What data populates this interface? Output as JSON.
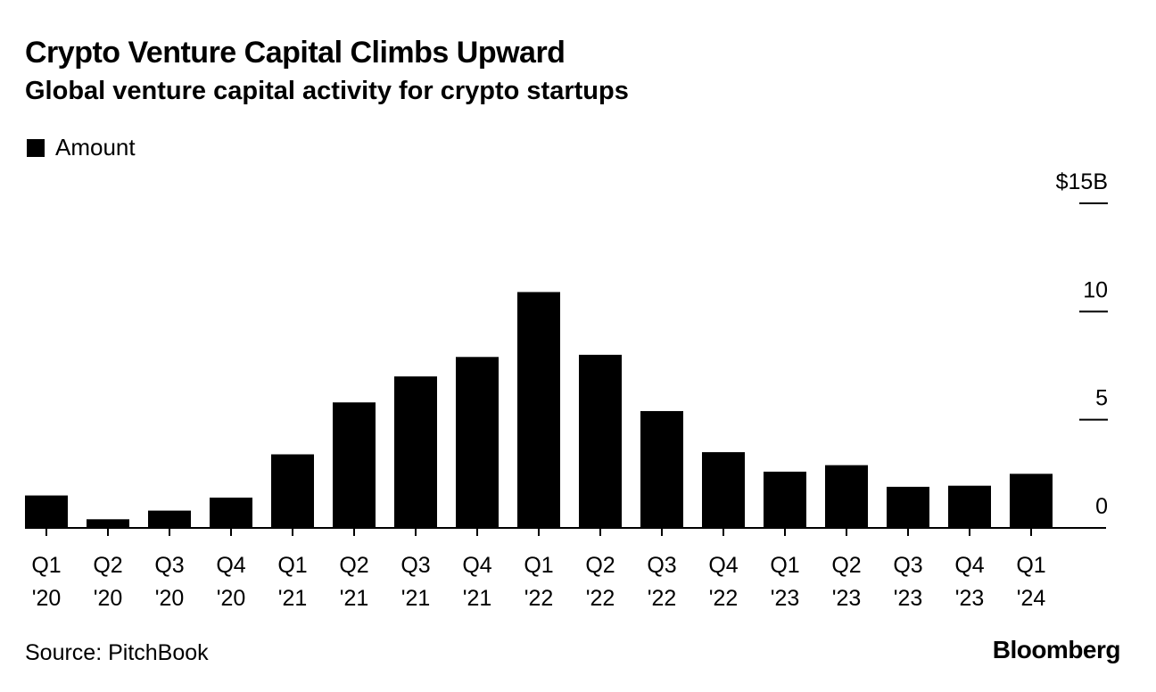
{
  "chart_data": {
    "type": "bar",
    "title": "Crypto Venture Capital Climbs Upward",
    "subtitle": "Global venture capital activity for crypto startups",
    "legend": [
      "Amount"
    ],
    "legend_position": "top-left",
    "categories": [
      [
        "Q1",
        "'20"
      ],
      [
        "Q2",
        "'20"
      ],
      [
        "Q3",
        "'20"
      ],
      [
        "Q4",
        "'20"
      ],
      [
        "Q1",
        "'21"
      ],
      [
        "Q2",
        "'21"
      ],
      [
        "Q3",
        "'21"
      ],
      [
        "Q4",
        "'21"
      ],
      [
        "Q1",
        "'22"
      ],
      [
        "Q2",
        "'22"
      ],
      [
        "Q3",
        "'22"
      ],
      [
        "Q4",
        "'22"
      ],
      [
        "Q1",
        "'23"
      ],
      [
        "Q2",
        "'23"
      ],
      [
        "Q3",
        "'23"
      ],
      [
        "Q4",
        "'23"
      ],
      [
        "Q1",
        "'24"
      ]
    ],
    "series": [
      {
        "name": "Amount",
        "color": "#000000",
        "values": [
          1.5,
          0.4,
          0.8,
          1.4,
          3.4,
          5.8,
          7.0,
          7.9,
          10.9,
          8.0,
          5.4,
          3.5,
          2.6,
          2.9,
          1.9,
          1.95,
          2.5
        ]
      }
    ],
    "y_axis": {
      "position": "right",
      "ylim": [
        0,
        15
      ],
      "ticks": [
        {
          "value": 15,
          "label": "$15B"
        },
        {
          "value": 10,
          "label": "10"
        },
        {
          "value": 5,
          "label": "5"
        },
        {
          "value": 0,
          "label": "0"
        }
      ]
    },
    "grid": false
  },
  "footer": {
    "source": "Source: PitchBook",
    "brand": "Bloomberg"
  }
}
